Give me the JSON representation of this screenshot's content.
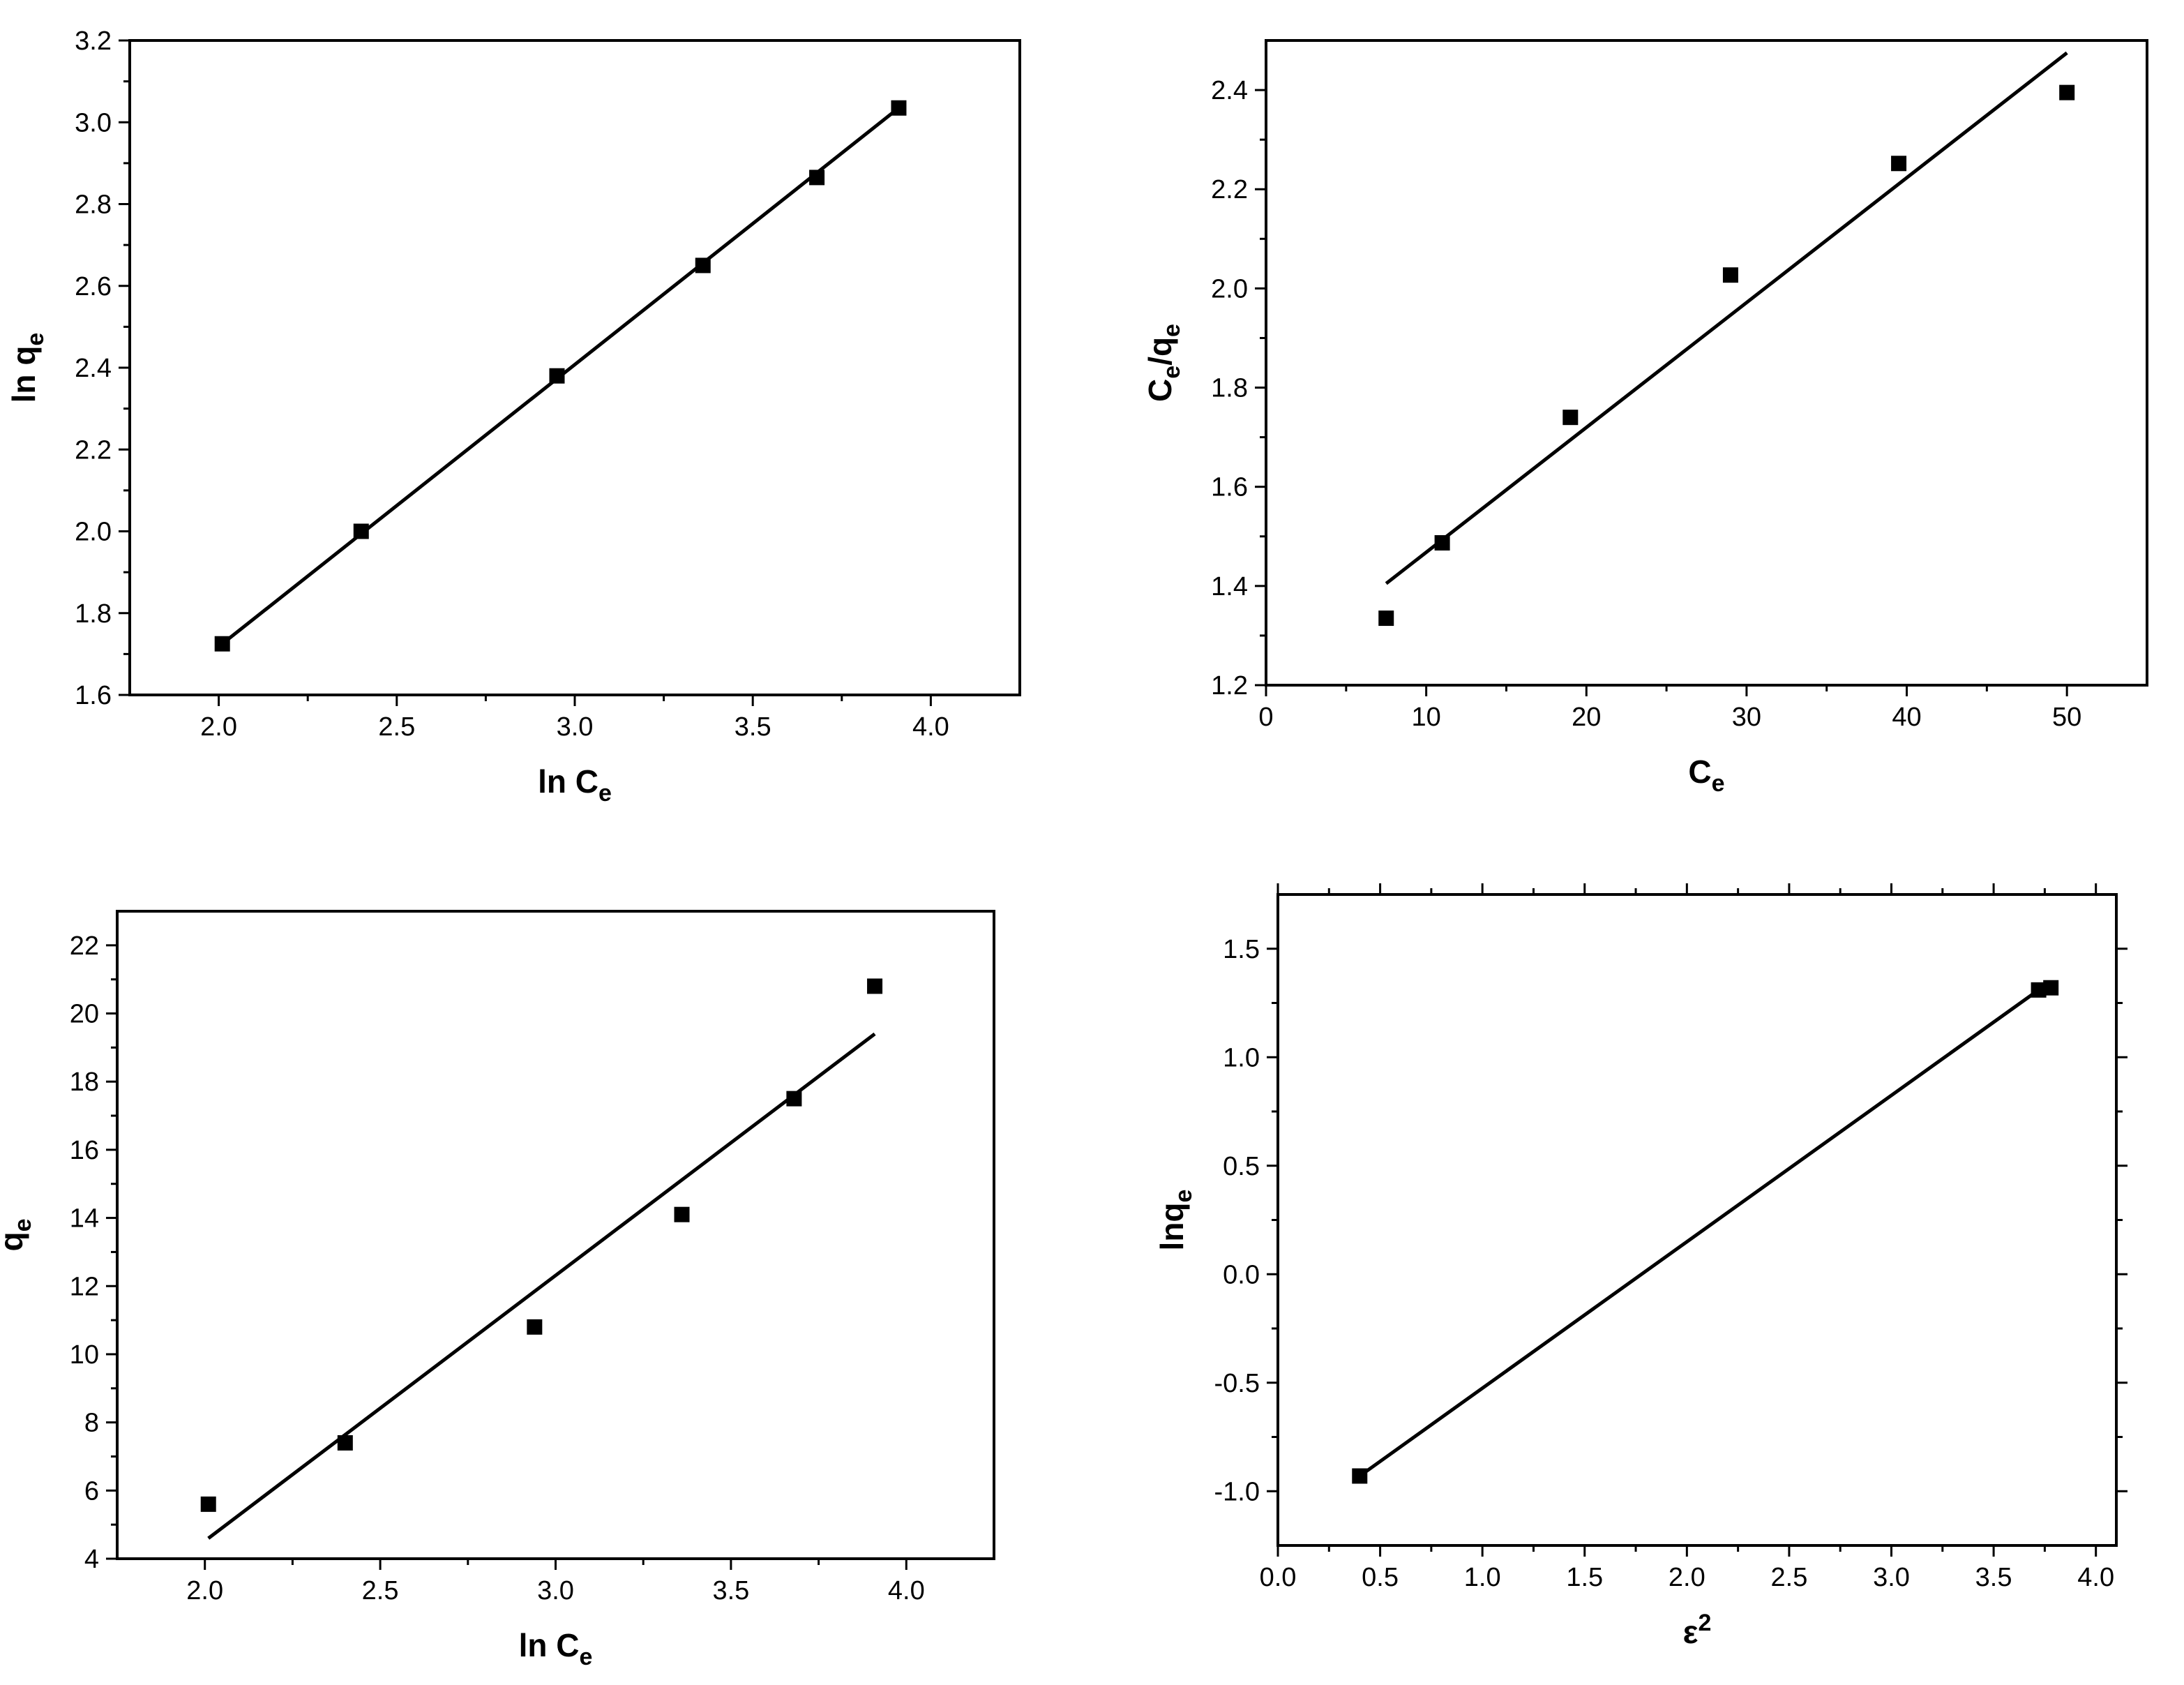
{
  "chart_data": [
    {
      "type": "scatter",
      "xlabel": {
        "main": "ln C",
        "sub": "e",
        "sup": ""
      },
      "ylabel": {
        "main": "ln q",
        "sub": "e",
        "sup": ""
      },
      "xlim": [
        1.75,
        4.25
      ],
      "ylim": [
        1.6,
        3.2
      ],
      "xticks": [
        2.0,
        2.5,
        3.0,
        3.5,
        4.0
      ],
      "xtick_labels": [
        "2.0",
        "2.5",
        "3.0",
        "3.5",
        "4.0"
      ],
      "yticks": [
        1.6,
        1.8,
        2.0,
        2.2,
        2.4,
        2.6,
        2.8,
        3.0,
        3.2
      ],
      "ytick_labels": [
        "1.6",
        "1.8",
        "2.0",
        "2.2",
        "2.4",
        "2.6",
        "2.8",
        "3.0",
        "3.2"
      ],
      "grid": false,
      "series": [
        {
          "kind": "points",
          "marker": "square",
          "x": [
            2.01,
            2.4,
            2.95,
            3.36,
            3.68,
            3.91
          ],
          "y": [
            1.725,
            2.0,
            2.38,
            2.65,
            2.865,
            3.035
          ]
        },
        {
          "kind": "fit-line",
          "x": [
            2.01,
            3.91
          ],
          "y": [
            1.725,
            3.035
          ]
        }
      ]
    },
    {
      "type": "scatter",
      "xlabel": {
        "main": "C",
        "sub": "e",
        "sup": ""
      },
      "ylabel": {
        "main": "C",
        "sub": "e",
        "tail": "/q",
        "sub2": "e"
      },
      "xlim": [
        0,
        55
      ],
      "ylim": [
        1.2,
        2.5
      ],
      "xticks": [
        0,
        10,
        20,
        30,
        40,
        50
      ],
      "xtick_labels": [
        "0",
        "10",
        "20",
        "30",
        "40",
        "50"
      ],
      "yticks": [
        1.2,
        1.4,
        1.6,
        1.8,
        2.0,
        2.2,
        2.4
      ],
      "ytick_labels": [
        "1.2",
        "1.4",
        "1.6",
        "1.8",
        "2.0",
        "2.2",
        "2.4"
      ],
      "grid": false,
      "series": [
        {
          "kind": "points",
          "marker": "square",
          "x": [
            7.5,
            11.0,
            19.0,
            29.0,
            39.5,
            50.0
          ],
          "y": [
            1.335,
            1.487,
            1.74,
            2.027,
            2.252,
            2.395
          ]
        },
        {
          "kind": "fit-line",
          "x": [
            7.5,
            50.0
          ],
          "y": [
            1.405,
            2.475
          ]
        }
      ]
    },
    {
      "type": "scatter",
      "xlabel": {
        "main": "ln C",
        "sub": "e",
        "sup": ""
      },
      "ylabel": {
        "main": "q",
        "sub": "e",
        "sup": ""
      },
      "xlim": [
        1.75,
        4.25
      ],
      "ylim": [
        4,
        23
      ],
      "xticks": [
        2.0,
        2.5,
        3.0,
        3.5,
        4.0
      ],
      "xtick_labels": [
        "2.0",
        "2.5",
        "3.0",
        "3.5",
        "4.0"
      ],
      "yticks": [
        4,
        6,
        8,
        10,
        12,
        14,
        16,
        18,
        20,
        22
      ],
      "ytick_labels": [
        "4",
        "6",
        "8",
        "10",
        "12",
        "14",
        "16",
        "18",
        "20",
        "22"
      ],
      "grid": false,
      "series": [
        {
          "kind": "points",
          "marker": "square",
          "x": [
            2.01,
            2.4,
            2.94,
            3.36,
            3.68,
            3.91
          ],
          "y": [
            5.6,
            7.4,
            10.8,
            14.1,
            17.5,
            20.8
          ]
        },
        {
          "kind": "fit-line",
          "x": [
            2.01,
            3.91
          ],
          "y": [
            4.6,
            19.4
          ]
        }
      ]
    },
    {
      "type": "scatter",
      "xlabel": {
        "main": "ε",
        "sub": "",
        "sup": "2"
      },
      "ylabel": {
        "main": "lnq",
        "sub": "e",
        "sup": ""
      },
      "xlim": [
        0,
        4.1
      ],
      "ylim": [
        -1.25,
        1.75
      ],
      "xticks": [
        0.0,
        0.5,
        1.0,
        1.5,
        2.0,
        2.5,
        3.0,
        3.5,
        4.0
      ],
      "xtick_labels": [
        "0.0",
        "0.5",
        "1.0",
        "1.5",
        "2.0",
        "2.5",
        "3.0",
        "3.5",
        "4.0"
      ],
      "yticks": [
        -1.0,
        -0.5,
        0.0,
        0.5,
        1.0,
        1.5
      ],
      "ytick_labels": [
        "-1.0",
        "-0.5",
        "0.0",
        "0.5",
        "1.0",
        "1.5"
      ],
      "grid": false,
      "series": [
        {
          "kind": "points",
          "marker": "square",
          "x": [
            0.4,
            3.72,
            3.78
          ],
          "y": [
            -0.93,
            1.31,
            1.32
          ]
        },
        {
          "kind": "fit-line",
          "x": [
            0.4,
            3.72
          ],
          "y": [
            -0.93,
            1.31
          ]
        }
      ]
    }
  ]
}
